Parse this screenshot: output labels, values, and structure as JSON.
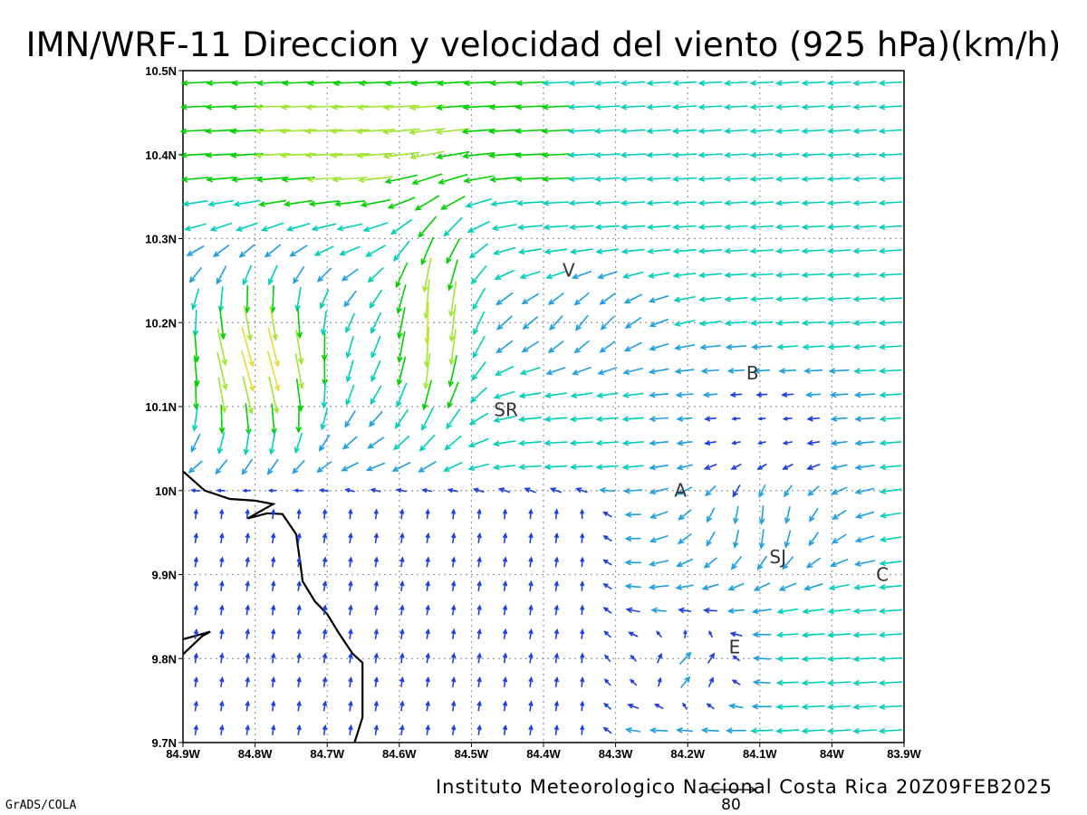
{
  "title": "IMN/WRF-11 Direccion y velocidad del viento (925 hPa)(km/h)",
  "footer": "Instituto Meteorologico Nacional Costa Rica 20Z09FEB2025",
  "credit": "GrADS/COLA",
  "reference_vector": {
    "label": "80",
    "speed_kmh": 80
  },
  "map": {
    "lon_range": [
      -84.9,
      -83.9
    ],
    "lat_range": [
      9.7,
      10.5
    ],
    "grid": true,
    "lat_ticks": [
      {
        "value": 10.5,
        "label": "10.5N"
      },
      {
        "value": 10.4,
        "label": "10.4N"
      },
      {
        "value": 10.3,
        "label": "10.3N"
      },
      {
        "value": 10.2,
        "label": "10.2N"
      },
      {
        "value": 10.1,
        "label": "10.1N"
      },
      {
        "value": 10.0,
        "label": "10N"
      },
      {
        "value": 9.9,
        "label": "9.9N"
      },
      {
        "value": 9.8,
        "label": "9.8N"
      },
      {
        "value": 9.7,
        "label": "9.7N"
      }
    ],
    "lon_ticks": [
      {
        "value": -84.9,
        "label": "84.9W"
      },
      {
        "value": -84.8,
        "label": "84.8W"
      },
      {
        "value": -84.7,
        "label": "84.7W"
      },
      {
        "value": -84.6,
        "label": "84.6W"
      },
      {
        "value": -84.5,
        "label": "84.5W"
      },
      {
        "value": -84.4,
        "label": "84.4W"
      },
      {
        "value": -84.3,
        "label": "84.3W"
      },
      {
        "value": -84.2,
        "label": "84.2W"
      },
      {
        "value": -84.1,
        "label": "84.1W"
      },
      {
        "value": -84.0,
        "label": "84W"
      },
      {
        "value": -83.9,
        "label": "83.9W"
      }
    ],
    "places": [
      {
        "label": "V",
        "lon": -84.365,
        "lat": 10.262
      },
      {
        "label": "SR",
        "lon": -84.452,
        "lat": 10.096
      },
      {
        "label": "B",
        "lon": -84.11,
        "lat": 10.14
      },
      {
        "label": "A",
        "lon": -84.21,
        "lat": 10.0
      },
      {
        "label": "SJ",
        "lon": -84.075,
        "lat": 9.921
      },
      {
        "label": "C",
        "lon": -83.93,
        "lat": 9.9
      },
      {
        "label": "E",
        "lon": -84.135,
        "lat": 9.814
      }
    ],
    "coastline": [
      [
        [
          -84.9,
          10.023
        ],
        [
          -84.87,
          10.0
        ],
        [
          -84.835,
          9.99
        ],
        [
          -84.8,
          9.988
        ],
        [
          -84.775,
          9.984
        ],
        [
          -84.81,
          9.967
        ],
        [
          -84.783,
          9.973
        ],
        [
          -84.762,
          9.972
        ],
        [
          -84.743,
          9.948
        ],
        [
          -84.737,
          9.912
        ],
        [
          -84.734,
          9.892
        ],
        [
          -84.717,
          9.868
        ],
        [
          -84.7,
          9.853
        ],
        [
          -84.685,
          9.832
        ],
        [
          -84.665,
          9.806
        ],
        [
          -84.651,
          9.795
        ],
        [
          -84.651,
          9.73
        ],
        [
          -84.662,
          9.7
        ]
      ],
      [
        [
          -84.9,
          9.805
        ],
        [
          -84.873,
          9.827
        ],
        [
          -84.862,
          9.832
        ],
        [
          -84.9,
          9.823
        ]
      ]
    ],
    "wind_colors": [
      {
        "max_kmh": 5,
        "color": "#8a00d8"
      },
      {
        "max_kmh": 10,
        "color": "#1f3fe0"
      },
      {
        "max_kmh": 15,
        "color": "#1f9fe0"
      },
      {
        "max_kmh": 20,
        "color": "#00d0b8"
      },
      {
        "max_kmh": 25,
        "color": "#00d000"
      },
      {
        "max_kmh": 30,
        "color": "#a0e632"
      },
      {
        "max_kmh": 35,
        "color": "#e6dc32"
      },
      {
        "max_kmh": 40,
        "color": "#e6a032"
      },
      {
        "max_kmh": 45,
        "color": "#f06028"
      },
      {
        "max_kmh": 999,
        "color": "#f00082"
      }
    ]
  }
}
